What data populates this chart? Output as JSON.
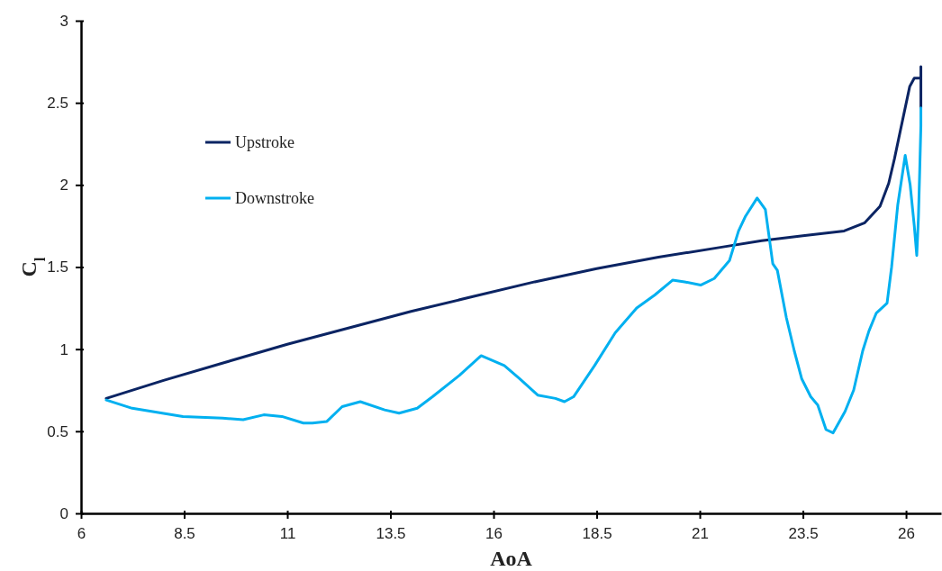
{
  "chart_data": {
    "type": "line",
    "xlabel": "AoA",
    "ylabel": "C$_{l}$",
    "xlim": [
      6,
      26.85
    ],
    "xticks": [
      6,
      8.5,
      11,
      13.5,
      16,
      18.5,
      21,
      23.5,
      26
    ],
    "ylim": [
      0,
      3
    ],
    "yticks": [
      0,
      0.5,
      1,
      1.5,
      2,
      2.5,
      3
    ],
    "grid": false,
    "legend": "top left",
    "marker": "none",
    "line_style": "solid",
    "series": [
      {
        "name": "Upstroke",
        "color": "#0b2463",
        "x": [
          6.61,
          8,
          9.5,
          11,
          12.5,
          14,
          15.5,
          17,
          18.5,
          20,
          21.5,
          22.5,
          23.5,
          24.5,
          25,
          25.37,
          25.58,
          25.72,
          25.87,
          26.09,
          26.2,
          26.36,
          26.36,
          26.36
        ],
        "values": [
          0.7,
          0.81,
          0.92,
          1.03,
          1.13,
          1.23,
          1.32,
          1.41,
          1.49,
          1.56,
          1.62,
          1.66,
          1.69,
          1.72,
          1.77,
          1.87,
          2.01,
          2.16,
          2.34,
          2.6,
          2.65,
          2.65,
          2.72,
          2.47
        ]
      },
      {
        "name": "Downstroke",
        "color": "#00b0f0",
        "x": [
          26.36,
          26.36,
          26.33,
          26.3,
          26.26,
          26.2,
          26.1,
          25.98,
          25.8,
          25.65,
          25.54,
          25.28,
          25.1,
          24.95,
          24.73,
          24.52,
          24.23,
          24.06,
          23.86,
          23.69,
          23.47,
          23.29,
          23.1,
          22.88,
          22.77,
          22.59,
          22.39,
          22.11,
          21.94,
          21.72,
          21.35,
          21.02,
          20.63,
          20.34,
          19.91,
          19.47,
          18.95,
          18.45,
          17.94,
          17.72,
          17.5,
          17.07,
          16.63,
          16.26,
          15.7,
          15.17,
          14.52,
          14.15,
          13.71,
          13.36,
          12.77,
          12.33,
          11.96,
          11.61,
          11.39,
          10.87,
          10.43,
          9.93,
          9.43,
          8.47,
          7.97,
          7.24,
          6.61
        ],
        "values": [
          2.47,
          2.36,
          2.07,
          1.8,
          1.57,
          1.75,
          2.0,
          2.18,
          1.88,
          1.5,
          1.28,
          1.22,
          1.11,
          0.99,
          0.75,
          0.62,
          0.49,
          0.51,
          0.66,
          0.71,
          0.82,
          0.99,
          1.19,
          1.48,
          1.52,
          1.85,
          1.92,
          1.81,
          1.72,
          1.54,
          1.43,
          1.39,
          1.41,
          1.42,
          1.33,
          1.25,
          1.1,
          0.9,
          0.71,
          0.68,
          0.7,
          0.72,
          0.82,
          0.9,
          0.96,
          0.84,
          0.71,
          0.64,
          0.61,
          0.63,
          0.68,
          0.65,
          0.56,
          0.55,
          0.55,
          0.59,
          0.6,
          0.57,
          0.58,
          0.59,
          0.61,
          0.64,
          0.69
        ]
      }
    ]
  }
}
